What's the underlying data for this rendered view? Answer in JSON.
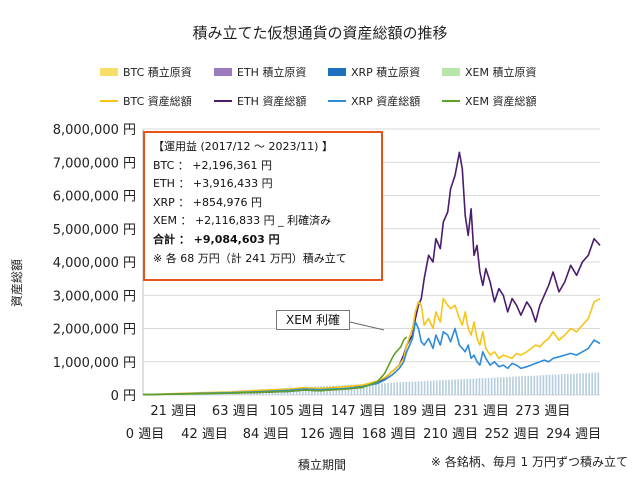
{
  "chart_data": {
    "type": "area",
    "title": "積み立てた仮想通貨の資産総額の推移",
    "xlabel": "積立期間",
    "ylabel": "資産総額",
    "ylim": [
      0,
      8000000
    ],
    "y_ticks": [
      "0 円",
      "1,000,000 円",
      "2,000,000 円",
      "3,000,000 円",
      "4,000,000 円",
      "5,000,000 円",
      "6,000,000 円",
      "7,000,000 円",
      "8,000,000 円"
    ],
    "x_ticks_row1": [
      "21 週目",
      "63 週目",
      "105 週目",
      "147 週目",
      "189 週目",
      "231 週目",
      "273 週目"
    ],
    "x_ticks_row2": [
      "0 週目",
      "42 週目",
      "84 週目",
      "126 週目",
      "168 週目",
      "210 週目",
      "252 週目",
      "294 週目"
    ],
    "x_range": [
      0,
      312
    ],
    "legend_area": [
      {
        "name": "BTC  積立原資",
        "color": "#f7de6a"
      },
      {
        "name": "ETH  積立原資",
        "color": "#9b7bbf"
      },
      {
        "name": "XRP  積立原資",
        "color": "#1f6fbf"
      },
      {
        "name": "XEM  積立原資",
        "color": "#b9e6a8"
      }
    ],
    "legend_line": [
      {
        "name": "BTC  資産総額",
        "color": "#f5c518"
      },
      {
        "name": "ETH  資産総額",
        "color": "#4b1c6e"
      },
      {
        "name": "XRP  資産総額",
        "color": "#2e8bd8"
      },
      {
        "name": "XEM  資産総額",
        "color": "#5fa02a"
      }
    ],
    "principal": {
      "start_week": 0,
      "end_week": 312,
      "start_value": 0,
      "end_value": 680000
    },
    "series": [
      {
        "name": "ETH  資産総額",
        "color": "#4b1c6e",
        "x": [
          0,
          20,
          40,
          60,
          80,
          100,
          110,
          120,
          140,
          150,
          160,
          165,
          170,
          175,
          178,
          180,
          184,
          186,
          188,
          190,
          192,
          195,
          198,
          200,
          203,
          205,
          208,
          210,
          213,
          216,
          218,
          220,
          222,
          224,
          226,
          228,
          230,
          232,
          234,
          237,
          240,
          243,
          246,
          249,
          252,
          255,
          258,
          262,
          265,
          268,
          271,
          274,
          277,
          280,
          284,
          288,
          292,
          296,
          300,
          304,
          308,
          312
        ],
        "y": [
          10000,
          30000,
          45000,
          60000,
          80000,
          110000,
          150000,
          130000,
          200000,
          260000,
          350000,
          500000,
          700000,
          900000,
          1200000,
          1500000,
          1800000,
          2300000,
          2700000,
          2900000,
          3500000,
          4200000,
          4000000,
          4700000,
          4400000,
          5200000,
          5500000,
          6200000,
          6600000,
          7300000,
          6800000,
          5400000,
          4800000,
          5600000,
          4200000,
          4500000,
          3700000,
          3300000,
          3800000,
          3400000,
          2800000,
          3200000,
          3000000,
          2500000,
          2900000,
          2700000,
          2400000,
          2800000,
          2600000,
          2200000,
          2700000,
          3000000,
          3300000,
          3700000,
          3100000,
          3400000,
          3900000,
          3600000,
          4000000,
          4200000,
          4700000,
          4500000
        ]
      },
      {
        "name": "BTC  資産総額",
        "color": "#f5c518",
        "x": [
          0,
          20,
          40,
          60,
          80,
          100,
          110,
          120,
          140,
          150,
          160,
          165,
          170,
          175,
          178,
          180,
          184,
          186,
          188,
          190,
          192,
          195,
          198,
          200,
          203,
          205,
          208,
          210,
          213,
          216,
          218,
          220,
          222,
          224,
          226,
          228,
          230,
          232,
          234,
          237,
          240,
          243,
          246,
          249,
          252,
          255,
          258,
          262,
          265,
          268,
          271,
          274,
          277,
          280,
          284,
          288,
          292,
          296,
          300,
          304,
          308,
          312
        ],
        "y": [
          10000,
          40000,
          70000,
          90000,
          140000,
          180000,
          220000,
          200000,
          260000,
          300000,
          420000,
          520000,
          700000,
          900000,
          1100000,
          1500000,
          2000000,
          2500000,
          2800000,
          2700000,
          2100000,
          2300000,
          2000000,
          2500000,
          2200000,
          2900000,
          2700000,
          2600000,
          2700000,
          2300000,
          2100000,
          2500000,
          2000000,
          1800000,
          2200000,
          1700000,
          1500000,
          1900000,
          1400000,
          1200000,
          1300000,
          1100000,
          1200000,
          1150000,
          1100000,
          1250000,
          1200000,
          1300000,
          1400000,
          1500000,
          1450000,
          1600000,
          1700000,
          1900000,
          1650000,
          1800000,
          2000000,
          1900000,
          2100000,
          2300000,
          2800000,
          2900000
        ]
      },
      {
        "name": "XRP  資産総額",
        "color": "#2e8bd8",
        "x": [
          0,
          20,
          40,
          60,
          80,
          100,
          110,
          120,
          140,
          150,
          160,
          165,
          170,
          175,
          178,
          180,
          184,
          186,
          188,
          190,
          192,
          195,
          198,
          200,
          203,
          205,
          208,
          210,
          213,
          216,
          218,
          220,
          222,
          224,
          226,
          228,
          230,
          232,
          234,
          237,
          240,
          243,
          246,
          249,
          252,
          255,
          258,
          262,
          265,
          268,
          271,
          274,
          277,
          280,
          284,
          288,
          292,
          296,
          300,
          304,
          308,
          312
        ],
        "y": [
          10000,
          30000,
          50000,
          70000,
          100000,
          140000,
          180000,
          160000,
          200000,
          250000,
          350000,
          450000,
          600000,
          800000,
          1000000,
          1300000,
          1700000,
          2200000,
          2000000,
          1600000,
          1500000,
          1700000,
          1400000,
          1800000,
          1500000,
          1900000,
          1800000,
          1600000,
          2000000,
          1500000,
          1400000,
          1300000,
          1500000,
          1100000,
          1200000,
          1000000,
          900000,
          1300000,
          1100000,
          900000,
          1000000,
          850000,
          900000,
          800000,
          950000,
          900000,
          800000,
          850000,
          900000,
          950000,
          1000000,
          1050000,
          1000000,
          1100000,
          1150000,
          1200000,
          1250000,
          1200000,
          1300000,
          1400000,
          1650000,
          1550000
        ]
      },
      {
        "name": "XEM  資産総額",
        "color": "#5fa02a",
        "x": [
          0,
          20,
          40,
          60,
          80,
          100,
          110,
          120,
          140,
          150,
          160,
          165,
          170,
          172,
          174,
          176,
          178,
          180
        ],
        "y": [
          10000,
          25000,
          40000,
          55000,
          80000,
          110000,
          150000,
          130000,
          180000,
          230000,
          400000,
          650000,
          1100000,
          1250000,
          1350000,
          1450000,
          1650000,
          1750000
        ]
      }
    ]
  },
  "info": {
    "line1": "【運用益 (2017/12 ～ 2023/11) 】",
    "line2": "BTC ： +2,196,361 円",
    "line3": "ETH ： +3,916,433 円",
    "line4": "XRP ： +854,976 円",
    "line5": "XEM ： +2,116,833 円 _ 利確済み",
    "line6": "合計 ： +9,084,603 円",
    "line7": "※ 各 68 万円（計 241 万円）積み立て"
  },
  "callout": "XEM 利確",
  "footnote": "※ 各銘柄、毎月 1 万円ずつ積み立て"
}
